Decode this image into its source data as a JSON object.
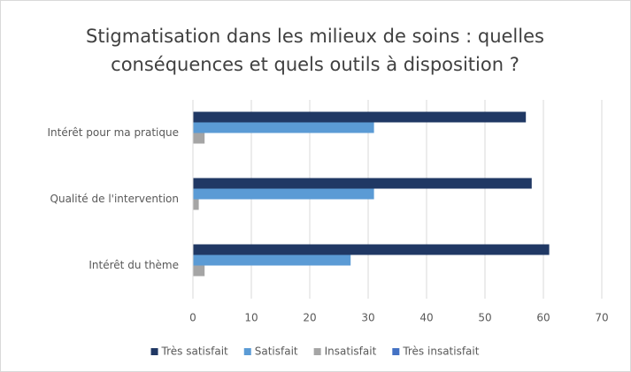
{
  "chart_data": {
    "type": "bar",
    "orientation": "horizontal",
    "title": [
      "Stigmatisation dans les milieux de soins : quelles",
      "conséquences et quels outils à disposition ?"
    ],
    "categories": [
      "Intérêt pour ma pratique",
      "Qualité de l'intervention",
      "Intérêt du thème"
    ],
    "series": [
      {
        "name": "Très satisfait",
        "color": "#203864",
        "values": [
          57,
          58,
          61
        ]
      },
      {
        "name": "Satisfait",
        "color": "#5b9bd5",
        "values": [
          31,
          31,
          27
        ]
      },
      {
        "name": "Insatisfait",
        "color": "#a5a5a5",
        "values": [
          2,
          1,
          2
        ]
      },
      {
        "name": "Très insatisfait",
        "color": "#4472c4",
        "values": [
          0,
          0,
          0
        ]
      }
    ],
    "xlim": [
      0,
      70
    ],
    "xticks": [
      0,
      10,
      20,
      30,
      40,
      50,
      60,
      70
    ],
    "grid": true,
    "legend": "bottom"
  }
}
